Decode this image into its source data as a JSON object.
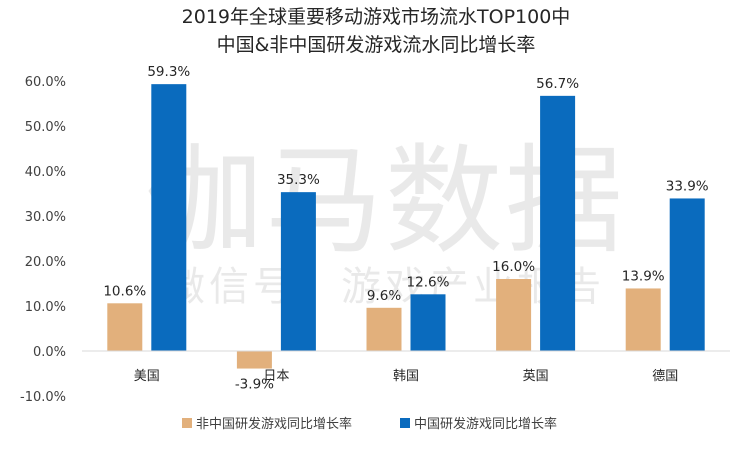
{
  "watermark": {
    "main": "伽马数据",
    "sub": "微信号：游戏产业报告"
  },
  "chart_data": {
    "type": "bar",
    "title_lines": [
      "2019年全球重要移动游戏市场流水TOP100中",
      "中国&非中国研发游戏流水同比增长率"
    ],
    "categories": [
      "美国",
      "日本",
      "韩国",
      "英国",
      "德国"
    ],
    "series": [
      {
        "name": "非中国研发游戏同比增长率",
        "color": "#E2B07C",
        "values": [
          10.6,
          -3.9,
          9.6,
          16.0,
          13.9
        ],
        "labels": [
          "10.6%",
          "-3.9%",
          "9.6%",
          "16.0%",
          "13.9%"
        ]
      },
      {
        "name": "中国研发游戏同比增长率",
        "color": "#0A6BBE",
        "values": [
          59.3,
          35.3,
          12.6,
          56.7,
          33.9
        ],
        "labels": [
          "59.3%",
          "35.3%",
          "12.6%",
          "56.7%",
          "33.9%"
        ]
      }
    ],
    "y_ticks": [
      60,
      50,
      40,
      30,
      20,
      10,
      0,
      -10
    ],
    "y_tick_labels": [
      "60.0%",
      "50.0%",
      "40.0%",
      "30.0%",
      "20.0%",
      "10.0%",
      "0.0%",
      "-10.0%"
    ],
    "ylim": [
      -10,
      60
    ],
    "grid": false,
    "legend_position": "bottom"
  }
}
